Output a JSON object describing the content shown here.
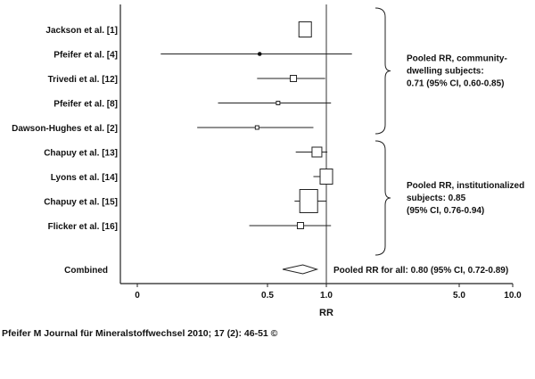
{
  "chart_data": {
    "type": "forest",
    "xlabel": "RR",
    "x_ticks": [
      {
        "value": 0.0,
        "label": "0"
      },
      {
        "value": 0.5,
        "label": "0.5"
      },
      {
        "value": 1.0,
        "label": "1.0"
      },
      {
        "value": 5.0,
        "label": "5.0"
      },
      {
        "value": 10.0,
        "label": "10.0"
      }
    ],
    "reference_line": 1.0,
    "studies": [
      {
        "label": "Jackson et al. [1]",
        "rr": 0.82,
        "ci": null,
        "marker": "square-large"
      },
      {
        "label": "Pfeifer et al. [4]",
        "rr": 0.47,
        "ci": [
          0.09,
          1.77
        ],
        "marker": "dot"
      },
      {
        "label": "Trivedi et al. [12]",
        "rr": 0.72,
        "ci": [
          0.46,
          0.99
        ],
        "marker": "square-small"
      },
      {
        "label": "Pfeifer et al. [8]",
        "rr": 0.59,
        "ci": [
          0.31,
          1.14
        ],
        "marker": "square-tiny"
      },
      {
        "label": "Dawson-Hughes et al. [2]",
        "rr": 0.46,
        "ci": [
          0.23,
          0.89
        ],
        "marker": "square-tiny"
      },
      {
        "label": "Chapuy et al. [13]",
        "rr": 0.92,
        "ci": [
          0.74,
          1.03
        ],
        "marker": "square-medium"
      },
      {
        "label": "Lyons et al. [14]",
        "rr": 1.0,
        "ci": [
          0.89,
          1.12
        ],
        "marker": "square-large"
      },
      {
        "label": "Chapuy et al. [15]",
        "rr": 0.85,
        "ci": [
          0.73,
          1.0
        ],
        "marker": "square-xlarge"
      },
      {
        "label": "Flicker et al. [16]",
        "rr": 0.78,
        "ci": [
          0.43,
          1.14
        ],
        "marker": "square-small"
      }
    ],
    "combined": {
      "label": "Combined",
      "rr": 0.8,
      "ci": [
        0.72,
        0.89
      ],
      "marker": "diamond"
    },
    "pooled_groups": [
      {
        "lines": [
          "Pooled RR, community-",
          "dwelling subjects:",
          "0.71 (95% CI, 0.60-0.85)"
        ],
        "rows": [
          0,
          4
        ]
      },
      {
        "lines": [
          "Pooled RR, institutionalized",
          "subjects: 0.85",
          "(95% CI, 0.76-0.94)"
        ],
        "rows": [
          5,
          8
        ]
      }
    ],
    "combined_text": "Pooled RR for all: 0.80 (95% CI, 0.72-0.89)"
  },
  "source_caption": "Pfeifer M Journal für Mineralstoffwechsel 2010; 17 (2): 46-51 ©"
}
